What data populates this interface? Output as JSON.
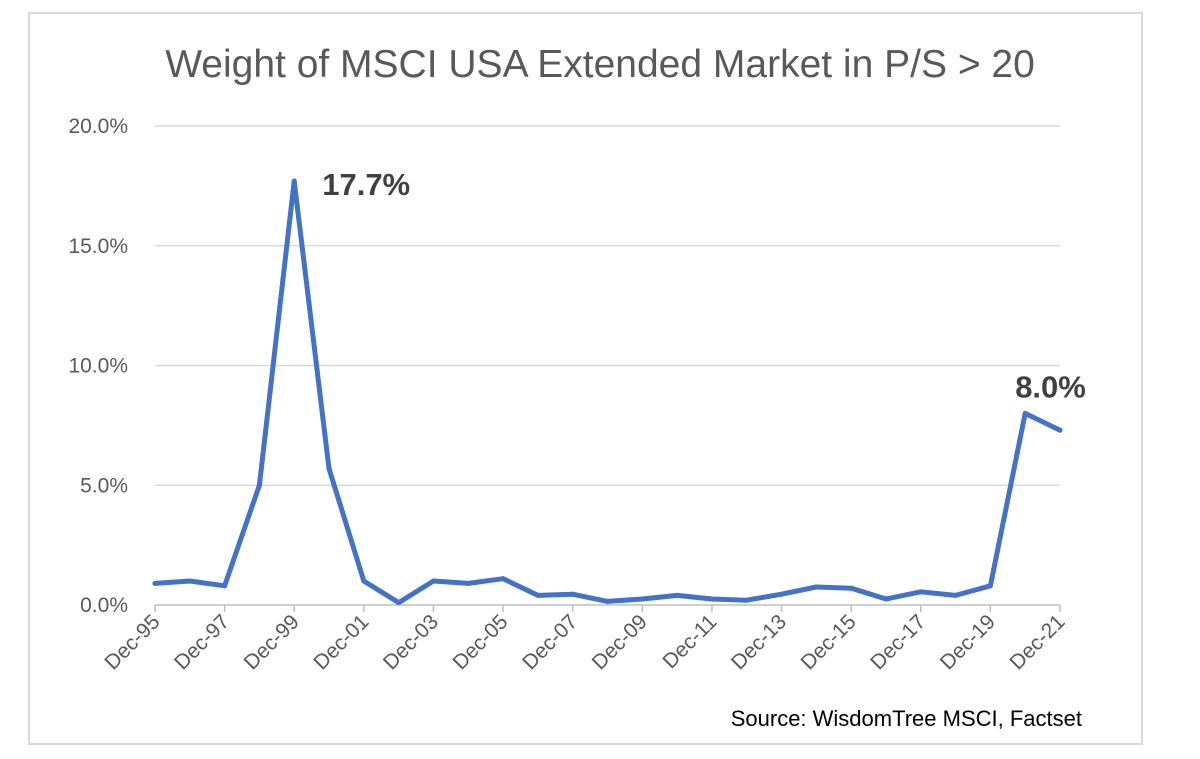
{
  "chart_data": {
    "type": "line",
    "title": "Weight of MSCI USA Extended Market in P/S > 20",
    "xlabel": "",
    "ylabel": "",
    "ylim": [
      0,
      20
    ],
    "y_ticks": [
      "0.0%",
      "5.0%",
      "10.0%",
      "15.0%",
      "20.0%"
    ],
    "y_tick_values": [
      0,
      5,
      10,
      15,
      20
    ],
    "x_tick_labels": [
      "Dec-95",
      "Dec-97",
      "Dec-99",
      "Dec-01",
      "Dec-03",
      "Dec-05",
      "Dec-07",
      "Dec-09",
      "Dec-11",
      "Dec-13",
      "Dec-15",
      "Dec-17",
      "Dec-19",
      "Dec-21"
    ],
    "x": [
      "Dec-95",
      "Dec-96",
      "Dec-97",
      "Dec-98",
      "Dec-99",
      "Dec-00",
      "Dec-01",
      "Dec-02",
      "Dec-03",
      "Dec-04",
      "Dec-05",
      "Dec-06",
      "Dec-07",
      "Dec-08",
      "Dec-09",
      "Dec-10",
      "Dec-11",
      "Dec-12",
      "Dec-13",
      "Dec-14",
      "Dec-15",
      "Dec-16",
      "Dec-17",
      "Dec-18",
      "Dec-19",
      "Dec-20",
      "Dec-21"
    ],
    "series": [
      {
        "values": [
          0.9,
          1.0,
          0.8,
          5.0,
          17.7,
          5.7,
          1.0,
          0.1,
          1.0,
          0.9,
          1.1,
          0.4,
          0.45,
          0.15,
          0.25,
          0.4,
          0.25,
          0.2,
          0.45,
          0.75,
          0.7,
          0.25,
          0.55,
          0.4,
          0.8,
          8.0,
          7.3
        ],
        "color": "#4472c4"
      }
    ],
    "annotations": [
      {
        "x": "Dec-99",
        "y": 17.7,
        "text": "17.7%"
      },
      {
        "x": "Dec-20",
        "y": 8.0,
        "text": "8.0%"
      }
    ],
    "grid": true,
    "legend": "none"
  },
  "source": "Source: WisdomTree MSCI, Factset"
}
